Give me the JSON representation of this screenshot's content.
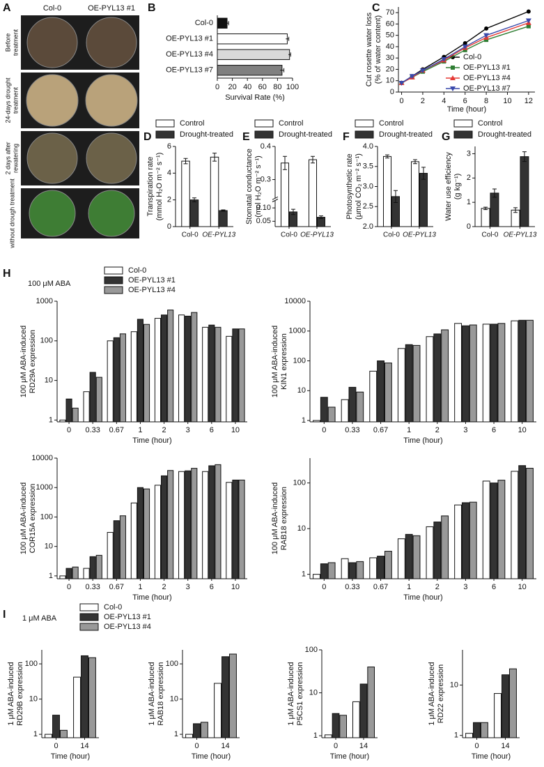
{
  "chart_data": [
    {
      "type": "photo",
      "panel": "A",
      "columns": [
        "Col-0",
        "OE-PYL13 #1"
      ],
      "rows": [
        [
          "Before",
          "treatment"
        ],
        [
          "24-days drought",
          "treatment"
        ],
        [
          "2 days after",
          "rewatering"
        ],
        [
          "without drough treatment"
        ]
      ]
    },
    {
      "type": "hbar",
      "panel": "B",
      "categories": [
        "Col-0",
        "OE-PYL13 #1",
        "OE-PYL13 #4",
        "OE-PYL13 #7"
      ],
      "values": [
        13,
        93,
        96,
        86
      ],
      "errors": [
        2,
        2,
        1.5,
        2.5
      ],
      "colors": [
        "#111111",
        "#ffffff",
        "#d9d9d9",
        "#808080"
      ],
      "xlim": [
        0,
        100
      ],
      "xticks": [
        0,
        20,
        40,
        60,
        80,
        100
      ],
      "xlabel": "Survival Rate (%)"
    },
    {
      "type": "line",
      "panel": "C",
      "x": [
        0,
        1,
        2,
        4,
        6,
        8,
        12
      ],
      "xlim": [
        -0.3,
        12.6
      ],
      "xticks": [
        0,
        2,
        4,
        6,
        8,
        10,
        12
      ],
      "ylim": [
        0,
        75
      ],
      "yticks": [
        0,
        10,
        20,
        30,
        40,
        50,
        60,
        70
      ],
      "xlabel": "Time (hour)",
      "ylabel": [
        "Cut rosette water loss",
        "(% of water content)"
      ],
      "legend": "lower right",
      "series": [
        {
          "name": "Col-0",
          "color": "#000000",
          "marker": "circle",
          "values": [
            8,
            14,
            20,
            31,
            43,
            56,
            71
          ]
        },
        {
          "name": "OE-PYL13 #1",
          "color": "#2e7d32",
          "marker": "square",
          "values": [
            8,
            13,
            18,
            27,
            37,
            46,
            58
          ]
        },
        {
          "name": "OE-PYL13 #4",
          "color": "#e53935",
          "marker": "triangle-up",
          "values": [
            8,
            13,
            19,
            28,
            39,
            48,
            61
          ]
        },
        {
          "name": "OE-PYL13 #7",
          "color": "#3949ab",
          "marker": "triangle-down",
          "values": [
            8,
            14,
            19,
            29,
            40,
            50,
            63
          ]
        }
      ]
    },
    {
      "type": "bar",
      "panel": "D",
      "categories": [
        "Col-0",
        "OE-PYL13"
      ],
      "ylim": [
        0,
        6
      ],
      "yticks": [
        0,
        2,
        4,
        6
      ],
      "ylabel": [
        "Transpiration rate",
        "(mmol H₂O m⁻² s⁻¹)"
      ],
      "legend": true,
      "series": [
        {
          "name": "Control",
          "color": "#ffffff",
          "values": [
            4.9,
            5.2
          ],
          "errors": [
            0.2,
            0.3
          ]
        },
        {
          "name": "Drought-treated",
          "color": "#333333",
          "values": [
            2.0,
            1.2
          ],
          "errors": [
            0.15,
            0.05
          ]
        }
      ]
    },
    {
      "type": "bar",
      "panel": "E",
      "categories": [
        "Col-0",
        "OE-PYL13"
      ],
      "ylim": [
        0.03,
        0.4
      ],
      "y_break": [
        0.12,
        0.25
      ],
      "yticks": [
        0.05,
        {
          "value": 0.1,
          "label": "0.10"
        },
        0.3,
        0.4
      ],
      "ylabel": [
        "Stomatal conductance",
        "(mol H₂O m⁻² s⁻¹)"
      ],
      "legend": true,
      "series": [
        {
          "name": "Control",
          "color": "#ffffff",
          "values": [
            0.35,
            0.36
          ],
          "errors": [
            0.02,
            0.01
          ]
        },
        {
          "name": "Drought-treated",
          "color": "#333333",
          "values": [
            0.085,
            0.065
          ],
          "errors": [
            0.01,
            0.005
          ]
        }
      ]
    },
    {
      "type": "bar",
      "panel": "F",
      "categories": [
        "Col-0",
        "OE-PYL13"
      ],
      "ylim": [
        2,
        4
      ],
      "yticks": [
        {
          "value": 2,
          "label": "2.0"
        },
        2.5,
        {
          "value": 3,
          "label": "3.0"
        },
        3.5,
        {
          "value": 4,
          "label": "4.0"
        }
      ],
      "ylabel": [
        "Photosynthetic rate",
        "(μmol CO₂ m⁻² s⁻¹)"
      ],
      "legend": true,
      "series": [
        {
          "name": "Control",
          "color": "#ffffff",
          "values": [
            3.75,
            3.62
          ],
          "errors": [
            0.04,
            0.05
          ]
        },
        {
          "name": "Drought-treated",
          "color": "#333333",
          "values": [
            2.75,
            3.33
          ],
          "errors": [
            0.15,
            0.15
          ]
        }
      ]
    },
    {
      "type": "bar",
      "panel": "G",
      "categories": [
        "Col-0",
        "OE-PYL13"
      ],
      "ylim": [
        0,
        3.3
      ],
      "yticks": [
        0,
        1,
        2,
        3
      ],
      "ylabel": [
        "Water use efficiency",
        "(g kg⁻¹)"
      ],
      "legend": true,
      "series": [
        {
          "name": "Control",
          "color": "#ffffff",
          "values": [
            0.75,
            0.68
          ],
          "errors": [
            0.05,
            0.1
          ]
        },
        {
          "name": "Drought-treated",
          "color": "#333333",
          "values": [
            1.38,
            2.88
          ],
          "errors": [
            0.17,
            0.2
          ]
        }
      ]
    },
    {
      "type": "bar",
      "panel": "H",
      "annotation": "100 μM ABA",
      "log": true,
      "legend": true,
      "categories": [
        "0",
        "0.33",
        "0.67",
        "1",
        "2",
        "3",
        "6",
        "10"
      ],
      "ylim": [
        0.9,
        1000
      ],
      "yticks": [
        1,
        10,
        100,
        1000
      ],
      "xlabel": "Time (hour)",
      "ylabel": [
        "100 μM ABA-induced",
        "RD29A expression"
      ],
      "series": [
        {
          "name": "Col-0",
          "color": "#ffffff",
          "values": [
            1,
            5.2,
            100,
            170,
            370,
            450,
            220,
            130
          ]
        },
        {
          "name": "OE-PYL13 #1",
          "color": "#333333",
          "values": [
            3.4,
            16,
            120,
            350,
            450,
            420,
            250,
            200
          ]
        },
        {
          "name": "OE-PYL13 #4",
          "color": "#999999",
          "values": [
            2.0,
            12,
            150,
            260,
            600,
            520,
            220,
            200
          ]
        }
      ]
    },
    {
      "type": "bar",
      "log": true,
      "categories": [
        "0",
        "0.33",
        "0.67",
        "1",
        "2",
        "3",
        "6",
        "10"
      ],
      "ylim": [
        0.9,
        10000
      ],
      "yticks": [
        1,
        10,
        100,
        1000,
        10000
      ],
      "xlabel": "Time (hour)",
      "ylabel": [
        "100 μM ABA-induced",
        "KIN1 expression"
      ],
      "series": [
        {
          "color": "#ffffff",
          "values": [
            1,
            5,
            45,
            260,
            650,
            1800,
            1700,
            2200
          ]
        },
        {
          "color": "#333333",
          "values": [
            6,
            13,
            100,
            350,
            800,
            1500,
            1700,
            2300
          ]
        },
        {
          "color": "#999999",
          "values": [
            2.8,
            9,
            85,
            330,
            1100,
            1600,
            1800,
            2300
          ]
        }
      ]
    },
    {
      "type": "bar",
      "log": true,
      "categories": [
        "0",
        "0.33",
        "0.67",
        "1",
        "2",
        "3",
        "6",
        "10"
      ],
      "ylim": [
        0.8,
        10000
      ],
      "yticks": [
        1,
        10,
        100,
        1000,
        10000
      ],
      "xlabel": "Time (hour)",
      "ylabel": [
        "100 μM ABA-induced",
        "COR15A expression"
      ],
      "series": [
        {
          "color": "#ffffff",
          "values": [
            1,
            1.8,
            30,
            300,
            1200,
            3500,
            3500,
            1500
          ]
        },
        {
          "color": "#333333",
          "values": [
            1.8,
            4.5,
            75,
            1000,
            2500,
            3700,
            5500,
            1800
          ]
        },
        {
          "color": "#999999",
          "values": [
            2,
            5,
            110,
            900,
            3800,
            4500,
            6000,
            1800
          ]
        }
      ]
    },
    {
      "type": "bar",
      "log": true,
      "categories": [
        "0",
        "0.33",
        "0.67",
        "1",
        "2",
        "3",
        "6",
        "10"
      ],
      "ylim": [
        0.8,
        350
      ],
      "yticks": [
        1,
        10,
        100
      ],
      "xlabel": "Time (hour)",
      "ylabel": [
        "100 μM ABA-induced",
        "RAB18 expression"
      ],
      "series": [
        {
          "color": "#ffffff",
          "values": [
            1,
            2.2,
            2.3,
            6,
            11,
            33,
            110,
            180
          ]
        },
        {
          "color": "#333333",
          "values": [
            1.7,
            1.8,
            2.5,
            7.5,
            14,
            37,
            100,
            240
          ]
        },
        {
          "color": "#999999",
          "values": [
            1.8,
            1.9,
            3.2,
            7,
            19,
            38,
            115,
            210
          ]
        }
      ]
    },
    {
      "type": "bar",
      "panel": "I",
      "annotation": "1 μM ABA",
      "log": true,
      "legend": true,
      "categories": [
        "0",
        "14"
      ],
      "ylim": [
        0.8,
        250
      ],
      "yticks": [
        1,
        10,
        100
      ],
      "xlabel": "Time (hour)",
      "ylabel": [
        "1 μM ABA-induced",
        "RD29B expression"
      ],
      "series": [
        {
          "name": "Col-0",
          "color": "#ffffff",
          "values": [
            1.0,
            42
          ]
        },
        {
          "name": "OE-PYL13 #1",
          "color": "#333333",
          "values": [
            3.5,
            170
          ]
        },
        {
          "name": "OE-PYL13 #4",
          "color": "#999999",
          "values": [
            1.3,
            150
          ]
        }
      ]
    },
    {
      "type": "bar",
      "log": true,
      "categories": [
        "0",
        "14"
      ],
      "ylim": [
        0.8,
        250
      ],
      "yticks": [
        1,
        10,
        100
      ],
      "xlabel": "Time (hour)",
      "ylabel": [
        "1 μM ABA-induced",
        "RAB18 expression"
      ],
      "series": [
        {
          "color": "#ffffff",
          "values": [
            1.0,
            28
          ]
        },
        {
          "color": "#333333",
          "values": [
            2.0,
            160
          ]
        },
        {
          "color": "#999999",
          "values": [
            2.2,
            190
          ]
        }
      ]
    },
    {
      "type": "bar",
      "log": true,
      "categories": [
        "0",
        "14"
      ],
      "ylim": [
        0.9,
        100
      ],
      "yticks": [
        1,
        10,
        100
      ],
      "xlabel": "Time (hour)",
      "ylabel": [
        "1 μM ABA-induced",
        "P5CS1 expression"
      ],
      "series": [
        {
          "color": "#ffffff",
          "values": [
            1.05,
            6.2
          ]
        },
        {
          "color": "#333333",
          "values": [
            3.3,
            16
          ]
        },
        {
          "color": "#999999",
          "values": [
            3.0,
            40
          ]
        }
      ]
    },
    {
      "type": "bar",
      "log": true,
      "categories": [
        "0",
        "14"
      ],
      "ylim": [
        0.9,
        50
      ],
      "yticks": [
        1,
        10
      ],
      "xlabel": "Time (hour)",
      "ylabel": [
        "1 μM ABA-induced",
        "RD22 expression"
      ],
      "series": [
        {
          "color": "#ffffff",
          "values": [
            1.1,
            6.8
          ]
        },
        {
          "color": "#333333",
          "values": [
            1.8,
            16
          ]
        },
        {
          "color": "#999999",
          "values": [
            1.8,
            21
          ]
        }
      ]
    }
  ]
}
